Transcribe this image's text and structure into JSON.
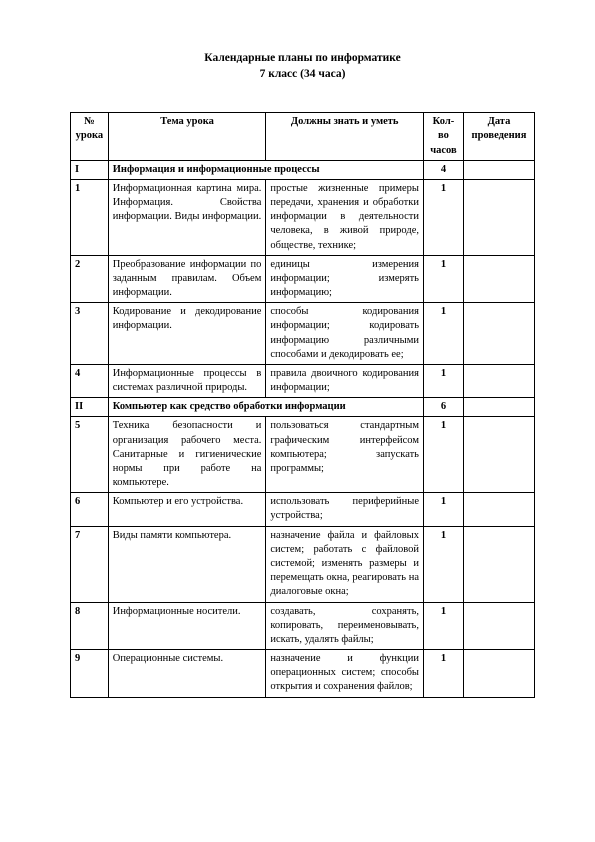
{
  "title_line1": "Календарные планы по информатике",
  "title_line2": "7 класс (34 часа)",
  "headers": {
    "num": "№ урока",
    "topic": "Тема урока",
    "skills": "Должны знать и уметь",
    "hours": "Кол-во часов",
    "date": "Дата проведения"
  },
  "rows": [
    {
      "type": "section",
      "num": "I",
      "topic": "Информация и информационные процессы",
      "hours": "4"
    },
    {
      "type": "lesson",
      "num": "1",
      "topic": "Информационная картина мира. Информация. Свойства информации. Виды информации.",
      "skills": "простые жизненные примеры передачи, хранения и обработки информации в деятельности человека, в живой природе, обществе, технике;",
      "hours": "1"
    },
    {
      "type": "lesson",
      "num": "2",
      "topic": "Преобразование информации по заданным правилам. Объем информации.",
      "skills": "единицы измерения информации; измерять информацию;",
      "hours": "1"
    },
    {
      "type": "lesson",
      "num": "3",
      "topic": "Кодирование и декодирование информации.",
      "skills": "способы кодирования информации; кодировать информацию различными способами и декодировать ее;",
      "hours": "1"
    },
    {
      "type": "lesson",
      "num": "4",
      "topic": "Информационные процессы в системах различной природы.",
      "skills": "правила двоичного кодирования информации;",
      "hours": "1"
    },
    {
      "type": "section",
      "num": "II",
      "topic": "Компьютер как средство обработки информации",
      "hours": "6"
    },
    {
      "type": "lesson",
      "num": "5",
      "topic": "Техника безопасности и организация рабочего места. Санитарные и гигиенические нормы при работе на компьютере.",
      "skills": "пользоваться стандартным графическим интерфейсом компьютера; запускать программы;",
      "hours": "1"
    },
    {
      "type": "lesson",
      "num": "6",
      "topic": "Компьютер и его устройства.",
      "skills": "использовать периферийные устройства;",
      "hours": "1"
    },
    {
      "type": "lesson",
      "num": "7",
      "topic": "Виды памяти компьютера.",
      "skills": "назначение файла и файловых систем; работать с файловой системой; изменять размеры и перемещать окна, реагировать на диалоговые окна;",
      "hours": "1"
    },
    {
      "type": "lesson",
      "num": "8",
      "topic": "Информационные носители.",
      "skills": "создавать, сохранять, копировать, переименовывать, искать, удалять файлы;",
      "hours": "1"
    },
    {
      "type": "lesson",
      "num": "9",
      "topic": "Операционные системы.",
      "skills": "назначение и функции операционных систем; способы открытия и сохранения файлов;",
      "hours": "1"
    }
  ]
}
